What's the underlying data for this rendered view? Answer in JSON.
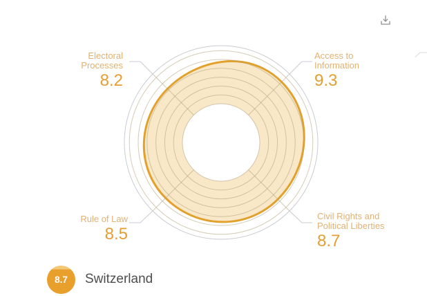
{
  "chart_data": {
    "type": "radar",
    "country": "Switzerland",
    "overall_score": "8.7",
    "scale": {
      "max": 10,
      "rings": [
        5,
        6,
        7,
        8,
        9,
        10
      ],
      "grid": true,
      "shape": "circular-donut"
    },
    "axes": [
      {
        "label": "Electoral Processes",
        "label_lines": [
          "Electoral",
          "Processes"
        ],
        "value": 8.2,
        "value_text": "8.2",
        "angle_deg": 135,
        "label_position": "top-left"
      },
      {
        "label": "Access to Information",
        "label_lines": [
          "Access to",
          "Information"
        ],
        "value": 9.3,
        "value_text": "9.3",
        "angle_deg": 45,
        "label_position": "top-right"
      },
      {
        "label": "Rule of Law",
        "label_lines": [
          "Rule of Law",
          ""
        ],
        "value": 8.5,
        "value_text": "8.5",
        "angle_deg": 225,
        "label_position": "bottom-left"
      },
      {
        "label": "Civil Rights and Political Liberties",
        "label_lines": [
          "Civil Rights and",
          "Political Liberties"
        ],
        "value": 8.7,
        "value_text": "8.7",
        "angle_deg": 315,
        "label_position": "bottom-right"
      }
    ],
    "colors": {
      "series_fill": "#F8E8C8",
      "series_stroke": "#E2A12C",
      "grid_ring": "#B3A07A",
      "outer_circle": "#C9CBD1",
      "leader_line": "#C9CBD1",
      "label_name": "#E2B171",
      "label_value": "#E59E33",
      "badge_main": "#E89F2B",
      "badge_top": "#F3C979",
      "country_text": "#4D4D4D",
      "icon_gray": "#8F8F8F"
    }
  },
  "footer": {
    "badge_score": "8.7",
    "country": "Switzerland"
  },
  "icons": {
    "download": "download-icon"
  }
}
